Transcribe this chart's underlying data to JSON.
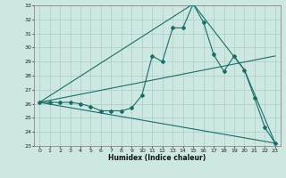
{
  "title": "",
  "xlabel": "Humidex (Indice chaleur)",
  "bg_color": "#cce8e0",
  "grid_color": "#aacccc",
  "line_color": "#1a6e6a",
  "xlim": [
    -0.5,
    23.5
  ],
  "ylim": [
    23,
    33
  ],
  "xticks": [
    0,
    1,
    2,
    3,
    4,
    5,
    6,
    7,
    8,
    9,
    10,
    11,
    12,
    13,
    14,
    15,
    16,
    17,
    18,
    19,
    20,
    21,
    22,
    23
  ],
  "yticks": [
    23,
    24,
    25,
    26,
    27,
    28,
    29,
    30,
    31,
    32,
    33
  ],
  "line1_x": [
    0,
    1,
    2,
    3,
    4,
    5,
    6,
    7,
    8,
    9,
    10,
    11,
    12,
    13,
    14,
    15,
    16,
    17,
    18,
    19,
    20,
    21,
    22,
    23
  ],
  "line1_y": [
    26.1,
    26.1,
    26.1,
    26.1,
    26.0,
    25.8,
    25.5,
    25.5,
    25.5,
    25.7,
    26.6,
    29.4,
    29.0,
    31.4,
    31.4,
    33.1,
    31.8,
    29.5,
    28.3,
    29.4,
    28.4,
    26.4,
    24.3,
    23.2
  ],
  "line2_x": [
    0,
    23
  ],
  "line2_y": [
    26.1,
    29.4
  ],
  "line3_x": [
    0,
    23
  ],
  "line3_y": [
    26.1,
    23.2
  ],
  "line4_x": [
    0,
    15,
    20,
    23
  ],
  "line4_y": [
    26.1,
    33.1,
    28.4,
    23.2
  ]
}
